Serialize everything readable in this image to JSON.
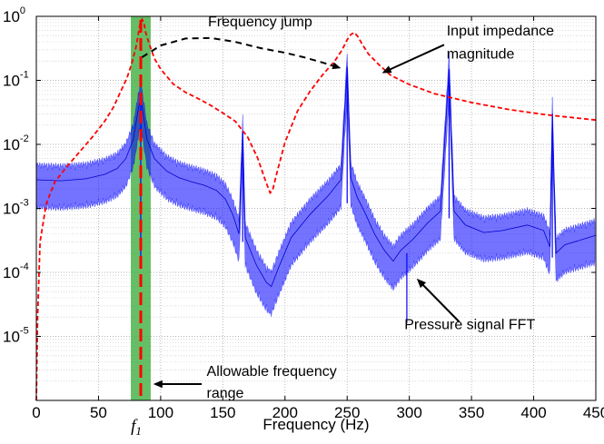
{
  "chart_data": {
    "type": "line",
    "title": "",
    "xlabel": "Frequency (Hz)",
    "ylabel": "",
    "xlim": [
      0,
      450
    ],
    "ylim": [
      1e-06,
      1
    ],
    "yscale": "log",
    "grid": true,
    "x_ticks": [
      0,
      50,
      100,
      150,
      200,
      250,
      300,
      350,
      400,
      450
    ],
    "x_tick_labels": [
      "0",
      "50",
      "100",
      "150",
      "200",
      "250",
      "300",
      "350",
      "400",
      "450"
    ],
    "y_ticks": [
      1e-05,
      0.0001,
      0.001,
      0.01,
      0.1,
      1
    ],
    "y_tick_labels": [
      {
        "base": "10",
        "exp": "-5"
      },
      {
        "base": "10",
        "exp": "-4"
      },
      {
        "base": "10",
        "exp": "-3"
      },
      {
        "base": "10",
        "exp": "-2"
      },
      {
        "base": "10",
        "exp": "-1"
      },
      {
        "base": "10",
        "exp": "0"
      }
    ],
    "series": [
      {
        "name": "Input impedance magnitude",
        "color": "#ff0000",
        "style": "dashed",
        "points": [
          [
            0,
            1e-06
          ],
          [
            1,
            2e-05
          ],
          [
            3,
            0.0003
          ],
          [
            8,
            0.0012
          ],
          [
            15,
            0.0026
          ],
          [
            25,
            0.0046
          ],
          [
            35,
            0.0077
          ],
          [
            45,
            0.013
          ],
          [
            55,
            0.023
          ],
          [
            62,
            0.038
          ],
          [
            68,
            0.068
          ],
          [
            73,
            0.11
          ],
          [
            77,
            0.19
          ],
          [
            80,
            0.32
          ],
          [
            82,
            0.52
          ],
          [
            83.5,
            0.78
          ],
          [
            85,
            0.9
          ],
          [
            86.5,
            0.8
          ],
          [
            88,
            0.55
          ],
          [
            91,
            0.36
          ],
          [
            95,
            0.22
          ],
          [
            100,
            0.15
          ],
          [
            110,
            0.088
          ],
          [
            120,
            0.065
          ],
          [
            130,
            0.052
          ],
          [
            140,
            0.041
          ],
          [
            150,
            0.031
          ],
          [
            160,
            0.023
          ],
          [
            170,
            0.013
          ],
          [
            178,
            0.0061
          ],
          [
            184,
            0.0028
          ],
          [
            188,
            0.00175
          ],
          [
            190,
            0.0019
          ],
          [
            193,
            0.0033
          ],
          [
            200,
            0.0108
          ],
          [
            210,
            0.033
          ],
          [
            220,
            0.067
          ],
          [
            230,
            0.12
          ],
          [
            240,
            0.2
          ],
          [
            246,
            0.3
          ],
          [
            250,
            0.43
          ],
          [
            253,
            0.52
          ],
          [
            256,
            0.56
          ],
          [
            259,
            0.47
          ],
          [
            262,
            0.37
          ],
          [
            267,
            0.26
          ],
          [
            275,
            0.18
          ],
          [
            285,
            0.12
          ],
          [
            300,
            0.086
          ],
          [
            320,
            0.062
          ],
          [
            350,
            0.045
          ],
          [
            380,
            0.035
          ],
          [
            410,
            0.029
          ],
          [
            450,
            0.024
          ]
        ]
      },
      {
        "name": "Pressure signal FFT",
        "color": "#0000ff",
        "style": "solid",
        "points": [
          [
            0,
            0.0028
          ],
          [
            20,
            0.0027
          ],
          [
            40,
            0.0029
          ],
          [
            55,
            0.0034
          ],
          [
            65,
            0.0042
          ],
          [
            72,
            0.006
          ],
          [
            78,
            0.012
          ],
          [
            82,
            0.035
          ],
          [
            84,
            0.055
          ],
          [
            86,
            0.03
          ],
          [
            89,
            0.012
          ],
          [
            95,
            0.006
          ],
          [
            105,
            0.0038
          ],
          [
            115,
            0.003
          ],
          [
            125,
            0.0026
          ],
          [
            135,
            0.0023
          ],
          [
            145,
            0.0019
          ],
          [
            152,
            0.0014
          ],
          [
            158,
            0.0008
          ],
          [
            163,
            0.0004
          ],
          [
            166,
            0.016
          ],
          [
            168,
            0.00035
          ],
          [
            171,
            0.00025
          ],
          [
            177,
            0.00013
          ],
          [
            185,
            7e-05
          ],
          [
            189,
            6e-05
          ],
          [
            195,
            0.00012
          ],
          [
            205,
            0.00035
          ],
          [
            220,
            0.0008
          ],
          [
            235,
            0.0016
          ],
          [
            245,
            0.0028
          ],
          [
            250,
            0.16
          ],
          [
            253,
            0.003
          ],
          [
            258,
            0.0015
          ],
          [
            265,
            0.0008
          ],
          [
            272,
            0.0004
          ],
          [
            280,
            0.00022
          ],
          [
            287,
            0.00015
          ],
          [
            293,
            0.00022
          ],
          [
            303,
            0.00033
          ],
          [
            315,
            0.0006
          ],
          [
            325,
            0.0009
          ],
          [
            332,
            0.15
          ],
          [
            336,
            0.0009
          ],
          [
            345,
            0.00055
          ],
          [
            360,
            0.00042
          ],
          [
            375,
            0.00045
          ],
          [
            395,
            0.00055
          ],
          [
            408,
            0.00045
          ],
          [
            413,
            0.00025
          ],
          [
            415,
            0.03
          ],
          [
            418,
            0.0002
          ],
          [
            425,
            0.00027
          ],
          [
            440,
            0.00033
          ],
          [
            450,
            0.00038
          ]
        ]
      }
    ],
    "spikes": [
      {
        "x": 84,
        "y_top": 0.055,
        "y_bottom": 0.00013
      },
      {
        "x": 166,
        "y_top": 0.016,
        "y_bottom": 0.0003
      },
      {
        "x": 250,
        "y_top": 0.16,
        "y_bottom": 0.0012
      },
      {
        "x": 298,
        "y_top": 0.0002,
        "y_bottom": 1.6e-05
      },
      {
        "x": 332,
        "y_top": 0.15,
        "y_bottom": 0.0007
      },
      {
        "x": 415,
        "y_top": 0.03,
        "y_bottom": 0.00017
      }
    ],
    "allowable_range": {
      "x_min": 76,
      "x_max": 92,
      "color": "#33aa33"
    },
    "f1": {
      "x": 84,
      "label_base": "f",
      "label_sub": "1",
      "color": "#ff0000"
    },
    "frequency_jump_curve": [
      [
        85,
        0.23
      ],
      [
        100,
        0.35
      ],
      [
        120,
        0.45
      ],
      [
        140,
        0.46
      ],
      [
        160,
        0.4
      ],
      [
        180,
        0.32
      ],
      [
        200,
        0.27
      ],
      [
        215,
        0.23
      ],
      [
        230,
        0.19
      ],
      [
        245,
        0.155
      ]
    ],
    "annotations": [
      {
        "text": "Frequency jump",
        "x": 180,
        "y": 0.7,
        "anchor": "middle"
      },
      {
        "text": "Input impedance",
        "x": 330,
        "y": 0.5,
        "anchor": "start"
      },
      {
        "text": "magnitude",
        "x": 330,
        "y": 0.22,
        "anchor": "start"
      },
      {
        "text": "Pressure signal FFT",
        "x": 296,
        "y": 1.3e-05,
        "anchor": "start"
      },
      {
        "text": "Allowable frequency",
        "x": 137,
        "y": 2.4e-06,
        "anchor": "start"
      },
      {
        "text": "range",
        "x": 137,
        "y": 1.1e-06,
        "anchor": "start"
      }
    ],
    "arrows": [
      {
        "from": [
          328,
          0.36
        ],
        "to": [
          278,
          0.13
        ]
      },
      {
        "from": [
          340,
          1.7e-05
        ],
        "to": [
          306,
          8e-05
        ]
      },
      {
        "from": [
          133,
          1.8e-06
        ],
        "to": [
          94,
          1.8e-06
        ]
      }
    ]
  }
}
